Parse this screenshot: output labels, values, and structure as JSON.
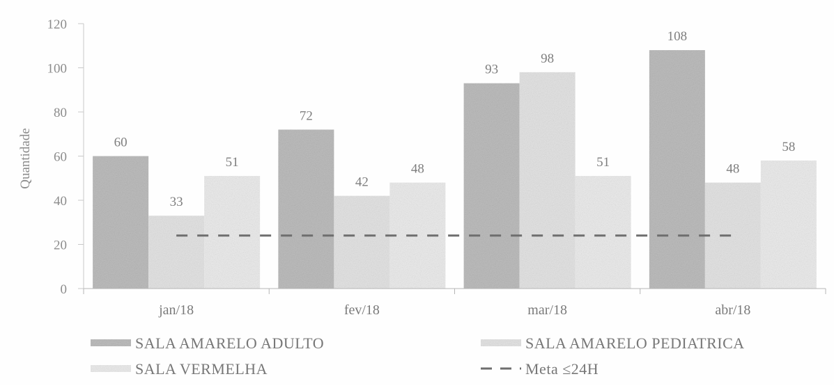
{
  "chart_data": {
    "type": "bar",
    "title": "",
    "xlabel": "",
    "ylabel": "Quantidade",
    "ylim": [
      0,
      120
    ],
    "yticks": [
      "0",
      "20",
      "40",
      "60",
      "80",
      "100",
      "120"
    ],
    "categories": [
      "jan/18",
      "fev/18",
      "mar/18",
      "abr/18"
    ],
    "series": [
      {
        "name": "SALA AMARELO ADULTO",
        "values": [
          60,
          72,
          93,
          108
        ],
        "labels": [
          "60",
          "72",
          "93",
          "108"
        ],
        "color": "#bdbdbd"
      },
      {
        "name": "SALA AMARELO PEDIATRICA",
        "values": [
          33,
          42,
          98,
          48
        ],
        "labels": [
          "33",
          "42",
          "98",
          "48"
        ],
        "color": "#e4e4e4"
      },
      {
        "name": "SALA VERMELHA",
        "values": [
          51,
          48,
          51,
          58
        ],
        "labels": [
          "51",
          "48",
          "51",
          "58"
        ],
        "color": "#ececec"
      }
    ],
    "target_line": {
      "name": "Meta ≤24H",
      "value": 24,
      "color": "#6e6e6e"
    },
    "legend_position": "bottom",
    "grid": false
  }
}
